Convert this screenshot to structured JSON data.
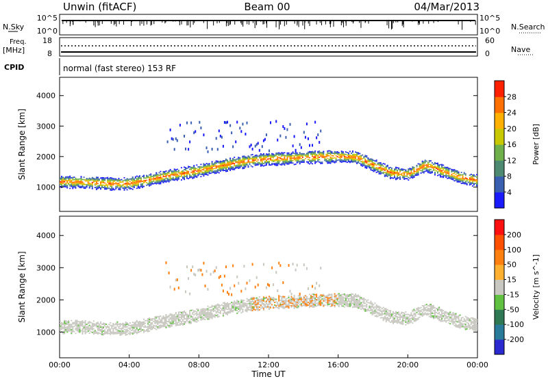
{
  "header": {
    "station": "Unwin (fitACF)",
    "beam": "Beam 00",
    "date": "04/Mar/2013"
  },
  "top_panels": {
    "nsky_label": "N.Sky",
    "nsky_ticks": [
      "10^5",
      "10^0"
    ],
    "nsearch_label": "N.Search",
    "nsearch_ticks": [
      "10^5",
      "10^0"
    ],
    "freq_label": "Freq.",
    "freq_unit": "[MHz]",
    "freq_ticks": [
      "18",
      "8"
    ],
    "nave_label": "Nave",
    "nave_ticks": [
      "60",
      "0"
    ],
    "cpid_label": "CPID",
    "cpid_text": "normal (fast stereo) 153 RF"
  },
  "chart_data": [
    {
      "type": "heatmap",
      "ylabel": "Slant Range [km]",
      "yticks": [
        1000,
        2000,
        3000,
        4000
      ],
      "ylim": [
        200,
        4600
      ],
      "xlim": [
        0,
        24
      ],
      "colorbar": {
        "label": "Power [dB]",
        "ticks": [
          "4",
          "8",
          "12",
          "16",
          "20",
          "24",
          "28"
        ],
        "colors": [
          "#1a1aff",
          "#3a5fb0",
          "#4e8a72",
          "#6fb04a",
          "#c8c800",
          "#ffb000",
          "#ff7000",
          "#ff2000"
        ]
      },
      "main_band": [
        [
          0,
          1150
        ],
        [
          1,
          1150
        ],
        [
          2,
          1120
        ],
        [
          3,
          1090
        ],
        [
          4,
          1100
        ],
        [
          5,
          1200
        ],
        [
          6,
          1330
        ],
        [
          7,
          1420
        ],
        [
          8,
          1520
        ],
        [
          9,
          1650
        ],
        [
          10,
          1760
        ],
        [
          11,
          1850
        ],
        [
          12,
          1900
        ],
        [
          13,
          1920
        ],
        [
          14,
          1950
        ],
        [
          15,
          1970
        ],
        [
          16,
          1980
        ],
        [
          17,
          1960
        ],
        [
          18,
          1700
        ],
        [
          19,
          1450
        ],
        [
          20,
          1400
        ],
        [
          21,
          1700
        ],
        [
          22,
          1500
        ],
        [
          23,
          1300
        ],
        [
          24,
          1200
        ]
      ]
    },
    {
      "type": "heatmap",
      "ylabel": "Slant Range [km]",
      "yticks": [
        1000,
        2000,
        3000,
        4000
      ],
      "ylim": [
        200,
        4600
      ],
      "xlim": [
        0,
        24
      ],
      "colorbar": {
        "label": "Velocity [m s^-1]",
        "ticks": [
          "200",
          "100",
          "50",
          "15",
          "-15",
          "-50",
          "-100",
          "-200"
        ],
        "colors": [
          "#2a2ad0",
          "#2a7a9a",
          "#2f7a55",
          "#60c040",
          "#c8c8c0",
          "#ffb030",
          "#ff8010",
          "#ff5000",
          "#ff1010"
        ]
      }
    }
  ],
  "x_axis": {
    "ticks": [
      "00:00",
      "04:00",
      "08:00",
      "12:00",
      "16:00",
      "20:00",
      "00:00"
    ],
    "label": "Time UT"
  }
}
